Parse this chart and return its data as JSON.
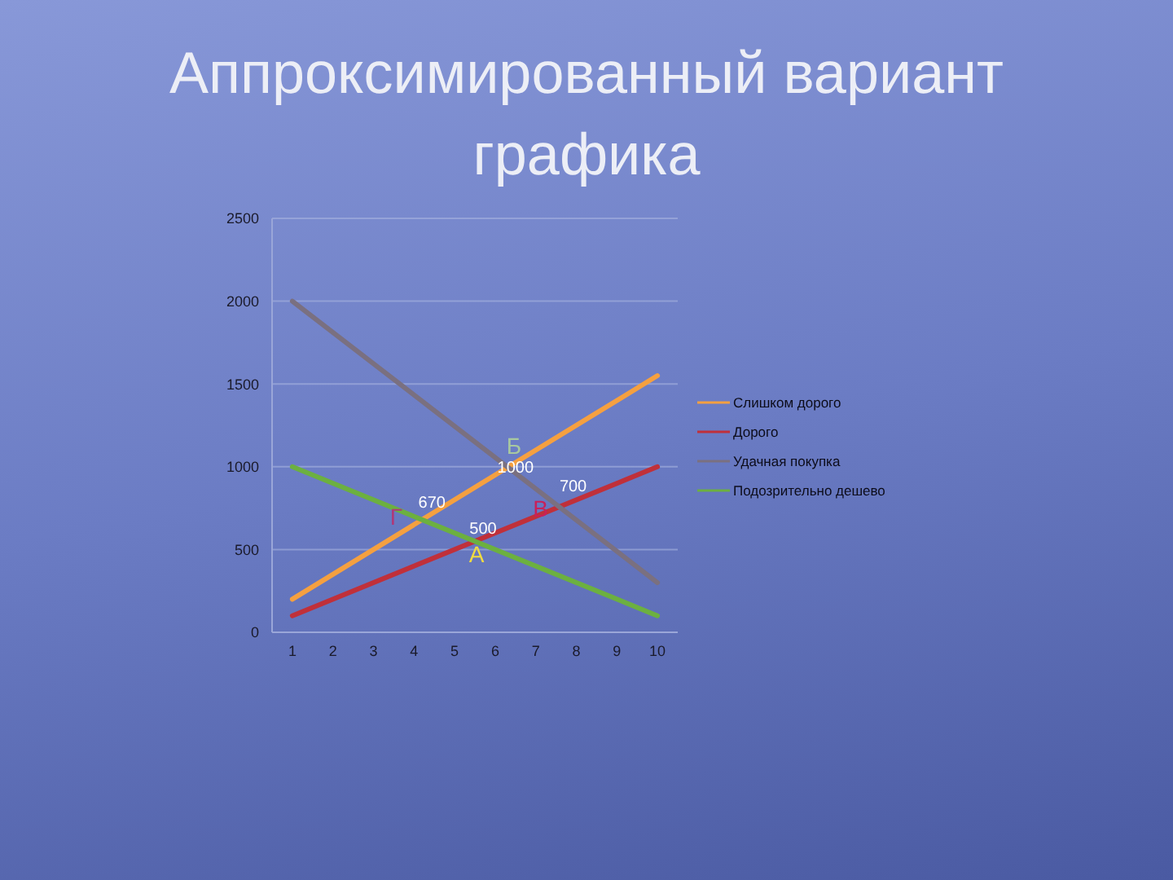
{
  "chart_data": {
    "type": "line",
    "title": "Аппроксимированный вариант графика",
    "x": [
      1,
      10
    ],
    "series": [
      {
        "name": "Слишком дорого",
        "color": "#f5a040",
        "values": [
          200,
          1550
        ]
      },
      {
        "name": "Дорого",
        "color": "#c0303a",
        "values": [
          100,
          1000
        ]
      },
      {
        "name": "Удачная покупка",
        "color": "#7a7080",
        "values": [
          2000,
          300
        ]
      },
      {
        "name": "Подозрительно дешево",
        "color": "#6cb040",
        "values": [
          1000,
          100
        ]
      }
    ],
    "xlim": [
      0.5,
      10.5
    ],
    "xticks": [
      1,
      2,
      3,
      4,
      5,
      6,
      7,
      8,
      9,
      10
    ],
    "ylim": [
      0,
      2500
    ],
    "yticks": [
      0,
      500,
      1000,
      1500,
      2000,
      2500
    ],
    "grid": "y",
    "legend": "right",
    "annotations": [
      {
        "text": "Б",
        "x": 6.3,
        "y": 1000
      },
      {
        "text": "1000",
        "x": 6.3,
        "y": 1000
      },
      {
        "text": "670",
        "x": 4.2,
        "y": 680
      },
      {
        "text": "Г",
        "x": 4.2,
        "y": 680
      },
      {
        "text": "В",
        "x": 7.6,
        "y": 760
      },
      {
        "text": "700",
        "x": 7.6,
        "y": 760
      },
      {
        "text": "500",
        "x": 5.5,
        "y": 550
      },
      {
        "text": "А",
        "x": 5.5,
        "y": 550
      }
    ]
  }
}
